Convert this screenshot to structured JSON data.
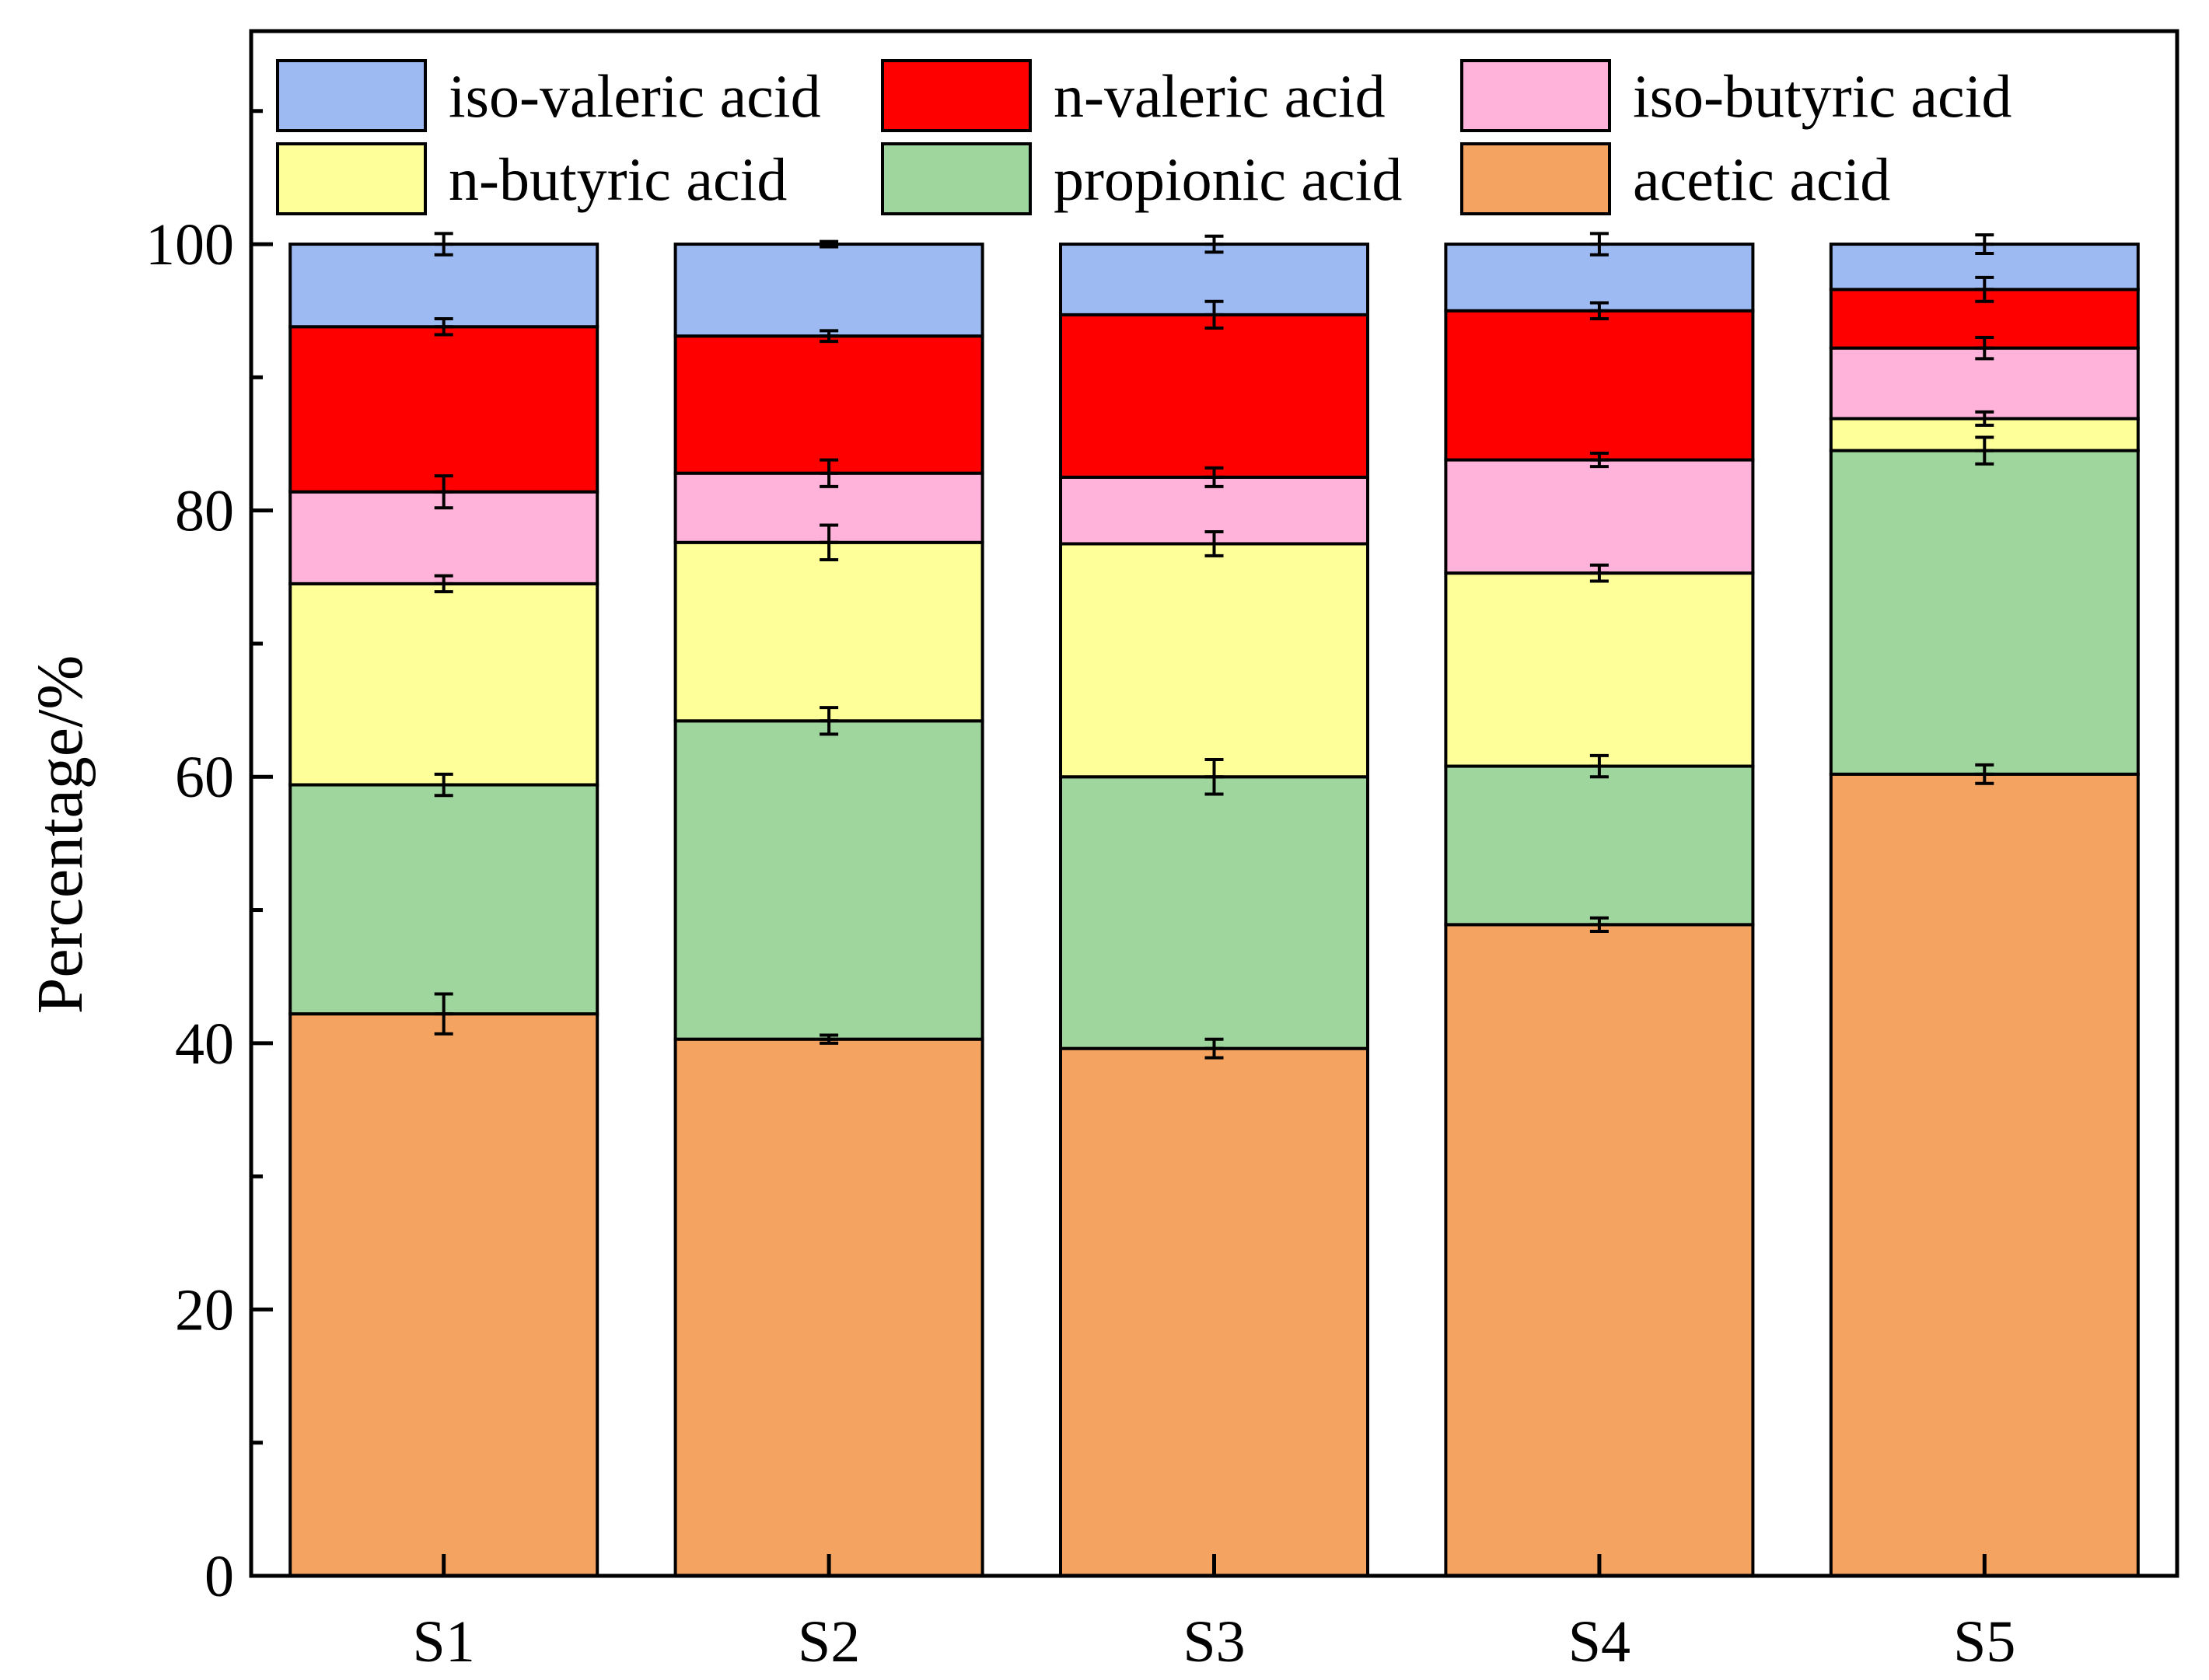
{
  "chart_data": {
    "type": "stacked-bar",
    "title": "",
    "xlabel": "",
    "ylabel": "Percentage/%",
    "ylim": [
      0,
      116
    ],
    "yticks": [
      0,
      20,
      40,
      60,
      80,
      100
    ],
    "ytick_labels": [
      "0",
      "20",
      "40",
      "60",
      "80",
      "100"
    ],
    "categories": [
      "S1",
      "S2",
      "S3",
      "S4",
      "S5"
    ],
    "series": [
      {
        "name": "acetic acid",
        "color": "#F4A460",
        "values": [
          42.2,
          40.3,
          39.6,
          48.9,
          60.2
        ],
        "errors": [
          1.5,
          0.3,
          0.7,
          0.5,
          0.7
        ]
      },
      {
        "name": "propionic acid",
        "color": "#9ED69E",
        "values": [
          17.2,
          23.9,
          20.4,
          11.9,
          24.3
        ],
        "errors": [
          0.8,
          1.0,
          1.3,
          0.8,
          1.0
        ]
      },
      {
        "name": "n-butyric acid",
        "color": "#FFFF99",
        "values": [
          15.1,
          13.4,
          17.5,
          14.5,
          2.4
        ],
        "errors": [
          0.6,
          1.3,
          0.9,
          0.6,
          0.5
        ]
      },
      {
        "name": "iso-butyric acid",
        "color": "#FFB3DB",
        "values": [
          6.9,
          5.2,
          5.0,
          8.5,
          5.3
        ],
        "errors": [
          1.2,
          1.0,
          0.7,
          0.5,
          0.8
        ]
      },
      {
        "name": "n-valeric acid",
        "color": "#FF0000",
        "values": [
          12.4,
          10.3,
          12.2,
          11.2,
          4.4
        ],
        "errors": [
          0.6,
          0.4,
          1.0,
          0.6,
          0.9
        ]
      },
      {
        "name": "iso-valeric acid",
        "color": "#9DBBF2",
        "values": [
          6.2,
          6.9,
          5.3,
          5.0,
          3.4
        ],
        "errors": [
          0.8,
          0.2,
          0.6,
          0.8,
          0.7
        ]
      }
    ],
    "legend": {
      "placement": "top",
      "rows": [
        [
          "iso-valeric acid",
          "n-valeric acid",
          "iso-butyric acid"
        ],
        [
          "n-butyric acid",
          "propionic acid",
          "acetic acid"
        ]
      ]
    },
    "grid": false
  }
}
